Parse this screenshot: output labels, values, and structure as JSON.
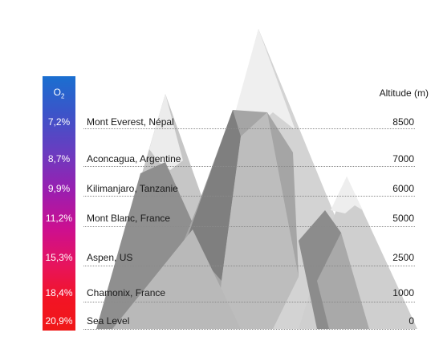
{
  "o2_header": {
    "base": "O",
    "sub": "2"
  },
  "altitude_header": "Altitude (m)",
  "rows": [
    {
      "o2": "7,2%",
      "place": "Mont Everest, Népal",
      "altitude": "8500"
    },
    {
      "o2": "8,7%",
      "place": "Aconcagua, Argentine",
      "altitude": "7000"
    },
    {
      "o2": "9,9%",
      "place": "Kilimanjaro, Tanzanie",
      "altitude": "6000"
    },
    {
      "o2": "11,2%",
      "place": "Mont Blanc, France",
      "altitude": "5000"
    },
    {
      "o2": "15,3%",
      "place": "Aspen, US",
      "altitude": "2500"
    },
    {
      "o2": "18,4%",
      "place": "Chamonix, France",
      "altitude": "1000"
    },
    {
      "o2": "20,9%",
      "place": "Sea Level",
      "altitude": "0"
    }
  ],
  "colors": {
    "gradient_top": "#1a6fd0",
    "gradient_bottom": "#f01818",
    "mountain_light": "#d4d4d4",
    "mountain_mid": "#b0b0b0",
    "mountain_dark": "#8a8a8a",
    "snow": "#f0f0f0"
  }
}
